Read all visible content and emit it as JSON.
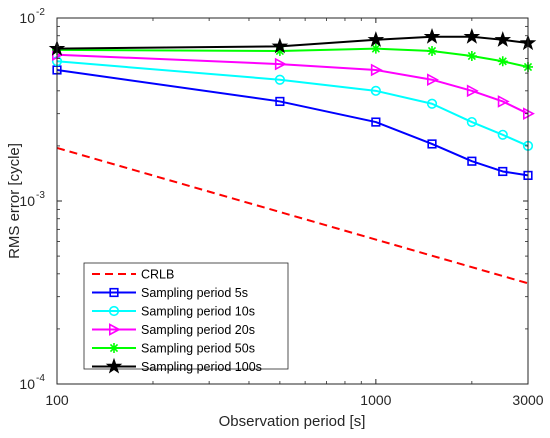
{
  "chart_data": {
    "type": "line",
    "xscale": "log",
    "yscale": "log",
    "xlim": [
      100,
      3000
    ],
    "ylim": [
      0.0001,
      0.01
    ],
    "xlabel": "Observation period [s]",
    "ylabel": "RMS error [cycle]",
    "xticks": [
      {
        "value": 100,
        "label": "100"
      },
      {
        "value": 1000,
        "label": "1000"
      },
      {
        "value": 3000,
        "label": "3000"
      }
    ],
    "yticks": [
      {
        "value": 0.0001,
        "base": "10",
        "exp": "-4"
      },
      {
        "value": 0.001,
        "base": "10",
        "exp": "-3"
      },
      {
        "value": 0.01,
        "base": "10",
        "exp": "-2"
      }
    ],
    "grid": false,
    "legend_position": "bottom-left",
    "series": [
      {
        "name": "CRLB",
        "color": "#ff0000",
        "style": "dashed",
        "marker": "none",
        "x": [
          100,
          3000
        ],
        "y": [
          0.00195,
          0.000355
        ]
      },
      {
        "name": "Sampling period 5s",
        "color": "#0000ff",
        "style": "solid",
        "marker": "square",
        "x": [
          100,
          500,
          1000,
          1500,
          2000,
          2500,
          3000
        ],
        "y": [
          0.0052,
          0.0035,
          0.0027,
          0.00205,
          0.00165,
          0.00145,
          0.00138
        ]
      },
      {
        "name": "Sampling period 10s",
        "color": "#00ffff",
        "style": "solid",
        "marker": "circle",
        "x": [
          100,
          500,
          1000,
          1500,
          2000,
          2500,
          3000
        ],
        "y": [
          0.0058,
          0.0046,
          0.004,
          0.0034,
          0.0027,
          0.0023,
          0.002
        ]
      },
      {
        "name": "Sampling period 20s",
        "color": "#ff00ff",
        "style": "solid",
        "marker": "triangle-right",
        "x": [
          100,
          500,
          1000,
          1500,
          2000,
          2500,
          3000
        ],
        "y": [
          0.0063,
          0.0056,
          0.0052,
          0.0046,
          0.004,
          0.0035,
          0.003
        ]
      },
      {
        "name": "Sampling period 50s",
        "color": "#00ff00",
        "style": "solid",
        "marker": "asterisk",
        "x": [
          100,
          500,
          1000,
          1500,
          2000,
          2500,
          3000
        ],
        "y": [
          0.0067,
          0.0066,
          0.0068,
          0.0066,
          0.0062,
          0.0058,
          0.0054
        ]
      },
      {
        "name": "Sampling period 100s",
        "color": "#000000",
        "style": "solid",
        "marker": "pentagram",
        "x": [
          100,
          500,
          1000,
          1500,
          2000,
          2500,
          3000
        ],
        "y": [
          0.0068,
          0.007,
          0.0076,
          0.0079,
          0.0079,
          0.0076,
          0.0073
        ]
      }
    ]
  }
}
